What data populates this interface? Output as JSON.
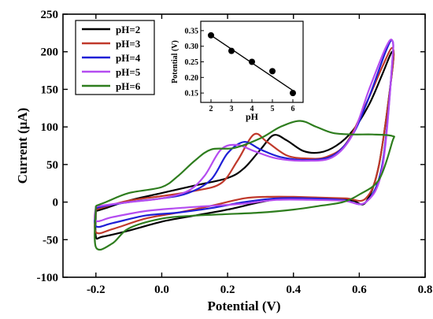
{
  "chart_data": [
    {
      "type": "line",
      "title": "",
      "xlabel": "Potential (V)",
      "ylabel": "Current (μA)",
      "xlim": [
        -0.3,
        0.8
      ],
      "ylim": [
        -100,
        250
      ],
      "xticks": [
        -0.2,
        0.0,
        0.2,
        0.4,
        0.6,
        0.8
      ],
      "xtick_labels": [
        "-0.2",
        "0.0",
        "0.2",
        "0.4",
        "0.6",
        "0.8"
      ],
      "yticks": [
        -100,
        -50,
        0,
        50,
        100,
        150,
        200,
        250
      ],
      "ytick_labels": [
        "-100",
        "-50",
        "0",
        "50",
        "100",
        "150",
        "200",
        "250"
      ],
      "legend_position": "top-left",
      "grid": false,
      "series": [
        {
          "name": "pH=2",
          "color": "#000000",
          "x": [
            -0.2,
            -0.17,
            -0.1,
            0.0,
            0.1,
            0.2,
            0.25,
            0.3,
            0.34,
            0.38,
            0.43,
            0.48,
            0.53,
            0.58,
            0.63,
            0.67,
            0.7,
            0.7,
            0.66,
            0.62,
            0.58,
            0.52,
            0.45,
            0.38,
            0.3,
            0.2,
            0.1,
            0.0,
            -0.1,
            -0.18,
            -0.2,
            -0.2
          ],
          "y": [
            -12,
            -8,
            2,
            12,
            22,
            32,
            45,
            70,
            89,
            82,
            68,
            66,
            75,
            95,
            130,
            170,
            200,
            175,
            50,
            0,
            2,
            5,
            6,
            6,
            0,
            -10,
            -18,
            -26,
            -38,
            -46,
            -46,
            -12
          ]
        },
        {
          "name": "pH=3",
          "color": "#c0392b",
          "x": [
            -0.2,
            -0.17,
            -0.1,
            0.0,
            0.1,
            0.18,
            0.23,
            0.28,
            0.32,
            0.38,
            0.44,
            0.5,
            0.56,
            0.62,
            0.67,
            0.7,
            0.7,
            0.66,
            0.62,
            0.56,
            0.48,
            0.4,
            0.32,
            0.25,
            0.15,
            0.05,
            -0.05,
            -0.15,
            -0.2,
            -0.2
          ],
          "y": [
            -10,
            -6,
            2,
            8,
            15,
            25,
            55,
            90,
            80,
            62,
            58,
            60,
            78,
            130,
            180,
            205,
            175,
            50,
            5,
            5,
            6,
            7,
            7,
            5,
            -5,
            -14,
            -22,
            -36,
            -40,
            -10
          ]
        },
        {
          "name": "pH=4",
          "color": "#1f1fd6",
          "x": [
            -0.2,
            -0.17,
            -0.1,
            0.0,
            0.08,
            0.15,
            0.2,
            0.25,
            0.3,
            0.36,
            0.44,
            0.52,
            0.58,
            0.63,
            0.68,
            0.7,
            0.7,
            0.67,
            0.62,
            0.55,
            0.45,
            0.35,
            0.25,
            0.15,
            0.05,
            -0.05,
            -0.15,
            -0.2,
            -0.2
          ],
          "y": [
            -8,
            -5,
            0,
            5,
            12,
            30,
            65,
            80,
            70,
            60,
            56,
            62,
            90,
            140,
            200,
            215,
            185,
            50,
            0,
            3,
            5,
            5,
            0,
            -8,
            -14,
            -18,
            -28,
            -32,
            -8
          ]
        },
        {
          "name": "pH=5",
          "color": "#b44cf0",
          "x": [
            -0.2,
            -0.17,
            -0.1,
            0.0,
            0.08,
            0.13,
            0.18,
            0.23,
            0.28,
            0.35,
            0.44,
            0.52,
            0.58,
            0.63,
            0.68,
            0.7,
            0.7,
            0.67,
            0.62,
            0.55,
            0.45,
            0.35,
            0.25,
            0.15,
            0.05,
            -0.05,
            -0.15,
            -0.2,
            -0.2
          ],
          "y": [
            -6,
            -4,
            0,
            5,
            15,
            35,
            70,
            76,
            68,
            58,
            55,
            60,
            90,
            150,
            205,
            215,
            185,
            45,
            0,
            2,
            3,
            3,
            -2,
            -5,
            -8,
            -12,
            -20,
            -25,
            -6
          ]
        },
        {
          "name": "pH=6",
          "color": "#2e7d1e",
          "x": [
            -0.2,
            -0.17,
            -0.1,
            0.0,
            0.05,
            0.1,
            0.15,
            0.22,
            0.3,
            0.36,
            0.42,
            0.47,
            0.52,
            0.58,
            0.64,
            0.7,
            0.7,
            0.66,
            0.6,
            0.55,
            0.48,
            0.4,
            0.3,
            0.2,
            0.1,
            0.0,
            -0.1,
            -0.15,
            -0.2,
            -0.2
          ],
          "y": [
            -5,
            0,
            12,
            20,
            35,
            55,
            70,
            72,
            85,
            100,
            108,
            100,
            92,
            90,
            90,
            88,
            80,
            30,
            10,
            0,
            -5,
            -10,
            -14,
            -16,
            -18,
            -22,
            -35,
            -55,
            -60,
            -5
          ]
        }
      ]
    },
    {
      "type": "scatter",
      "title": "",
      "xlabel": "pH",
      "ylabel": "Potential (V)",
      "xlim": [
        1.5,
        6.5
      ],
      "ylim": [
        0.12,
        0.38
      ],
      "xticks": [
        2,
        3,
        4,
        5,
        6
      ],
      "xtick_labels": [
        "2",
        "3",
        "4",
        "5",
        "6"
      ],
      "yticks": [
        0.15,
        0.2,
        0.25,
        0.3,
        0.35
      ],
      "ytick_labels": [
        "0.15",
        "0.20",
        "0.25",
        "0.30",
        "0.35"
      ],
      "points": {
        "x": [
          2,
          3,
          4,
          5,
          6
        ],
        "y": [
          0.335,
          0.285,
          0.25,
          0.22,
          0.15
        ]
      },
      "fit_line": {
        "x": [
          2,
          6
        ],
        "y": [
          0.335,
          0.158
        ]
      },
      "color": "#000000"
    }
  ]
}
